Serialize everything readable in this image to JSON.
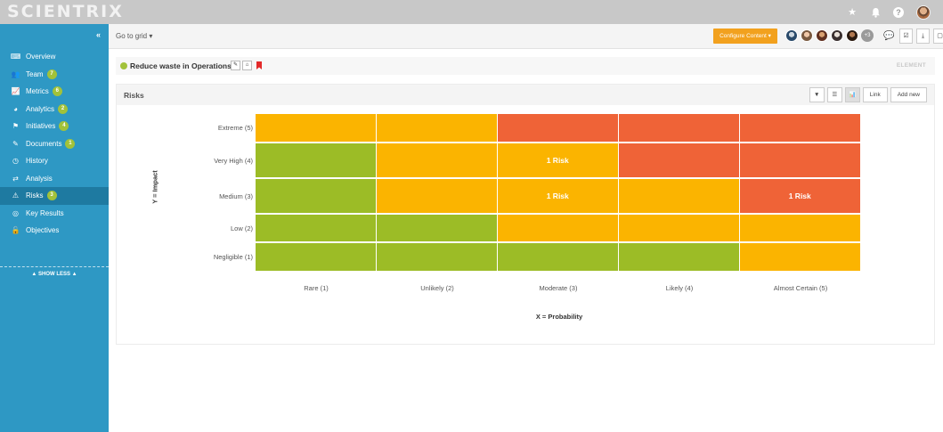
{
  "app": {
    "logo": "SCIENTRIX"
  },
  "topbar": {
    "icons": [
      "star-icon",
      "bell-icon",
      "help-icon",
      "user-avatar"
    ],
    "help_label": "?"
  },
  "sidebar": {
    "collapse_label": "«",
    "items": [
      {
        "label": "Overview",
        "icon": "overview-icon",
        "glyph": "⌨",
        "badge": ""
      },
      {
        "label": "Team",
        "icon": "team-icon",
        "glyph": "👥",
        "badge": "7"
      },
      {
        "label": "Metrics",
        "icon": "metrics-icon",
        "glyph": "📈",
        "badge": "6"
      },
      {
        "label": "Analytics",
        "icon": "analytics-icon",
        "glyph": "◕",
        "badge": "2"
      },
      {
        "label": "Initiatives",
        "icon": "initiatives-icon",
        "glyph": "⚑",
        "badge": "4"
      },
      {
        "label": "Documents",
        "icon": "documents-icon",
        "glyph": "✎",
        "badge": "1"
      },
      {
        "label": "History",
        "icon": "history-icon",
        "glyph": "◷",
        "badge": ""
      },
      {
        "label": "Analysis",
        "icon": "analysis-icon",
        "glyph": "⇄",
        "badge": ""
      },
      {
        "label": "Risks",
        "icon": "risks-icon",
        "glyph": "⚠",
        "badge": "3",
        "active": true
      },
      {
        "label": "Key Results",
        "icon": "key-results-icon",
        "glyph": "◎",
        "badge": ""
      },
      {
        "label": "Objectives",
        "icon": "objectives-icon",
        "glyph": "🔓",
        "badge": ""
      }
    ],
    "show_less": "▲   SHOW LESS   ▲"
  },
  "header": {
    "goto_grid": "Go to grid ▾",
    "configure_button": "Configure Content ▾",
    "more_avatars": "+3"
  },
  "element": {
    "title": "Reduce waste in Operations",
    "label": "ELEMENT",
    "status_color": "#a2c23a"
  },
  "panel": {
    "title": "Risks",
    "link_button": "Link",
    "add_new_button": "Add new"
  },
  "colors": {
    "green": "#9cbc26",
    "yellow": "#fbb400",
    "red": "#ef6337",
    "sidebar": "#2e98c4",
    "accent": "#f2a11e"
  },
  "chart_data": {
    "type": "heatmap",
    "xlabel": "X = Probability",
    "ylabel": "Y = Impact",
    "x_categories": [
      "Rare (1)",
      "Unlikely (2)",
      "Moderate (3)",
      "Likely (4)",
      "Almost Certain (5)"
    ],
    "y_categories": [
      "Extreme (5)",
      "Very High (4)",
      "Medium (3)",
      "Low (2)",
      "Negligible (1)"
    ],
    "cell_colors": [
      [
        "yellow",
        "yellow",
        "red",
        "red",
        "red"
      ],
      [
        "green",
        "yellow",
        "yellow",
        "red",
        "red"
      ],
      [
        "green",
        "yellow",
        "yellow",
        "yellow",
        "red"
      ],
      [
        "green",
        "green",
        "yellow",
        "yellow",
        "yellow"
      ],
      [
        "green",
        "green",
        "green",
        "green",
        "yellow"
      ]
    ],
    "cell_labels": [
      [
        "",
        "",
        "",
        "",
        ""
      ],
      [
        "",
        "",
        "1 Risk",
        "",
        ""
      ],
      [
        "",
        "",
        "1 Risk",
        "",
        "1 Risk"
      ],
      [
        "",
        "",
        "",
        "",
        ""
      ],
      [
        "",
        "",
        "",
        "",
        ""
      ]
    ]
  }
}
